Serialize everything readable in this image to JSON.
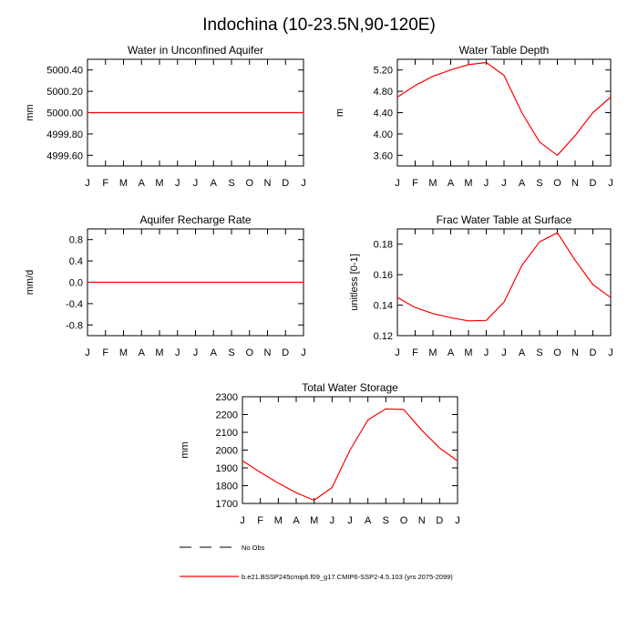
{
  "title": "Indochina (10-23.5N,90-120E)",
  "months": [
    "J",
    "F",
    "M",
    "A",
    "M",
    "J",
    "J",
    "A",
    "S",
    "O",
    "N",
    "D",
    "J"
  ],
  "colors": {
    "series": "#ff0000",
    "axis": "#000000"
  },
  "chart_data": [
    {
      "type": "line",
      "title": "Water in Unconfined Aquifer",
      "ylabel": "mm",
      "ylim": [
        4999.5,
        5000.5
      ],
      "yticks": [
        4999.6,
        4999.8,
        5000.0,
        5000.2,
        5000.4
      ],
      "ytick_labels": [
        "4999.60",
        "4999.80",
        "5000.00",
        "5000.20",
        "5000.40"
      ],
      "values": [
        5000,
        5000,
        5000,
        5000,
        5000,
        5000,
        5000,
        5000,
        5000,
        5000,
        5000,
        5000,
        5000
      ]
    },
    {
      "type": "line",
      "title": "Water Table Depth",
      "ylabel": "m",
      "ylim": [
        3.4,
        5.4
      ],
      "yticks": [
        3.6,
        4.0,
        4.4,
        4.8,
        5.2
      ],
      "ytick_labels": [
        "3.60",
        "4.00",
        "4.40",
        "4.80",
        "5.20"
      ],
      "values": [
        4.69,
        4.91,
        5.08,
        5.2,
        5.3,
        5.34,
        5.1,
        4.4,
        3.85,
        3.6,
        3.97,
        4.4,
        4.69
      ]
    },
    {
      "type": "line",
      "title": "Aquifer Recharge Rate",
      "ylabel": "mm/d",
      "ylim": [
        -1.0,
        1.0
      ],
      "yticks": [
        -0.8,
        -0.4,
        0.0,
        0.4,
        0.8
      ],
      "ytick_labels": [
        "-0.8",
        "-0.4",
        "0.0",
        "0.4",
        "0.8"
      ],
      "values": [
        0,
        0,
        0,
        0,
        0,
        0,
        0,
        0,
        0,
        0,
        0,
        0,
        0
      ]
    },
    {
      "type": "line",
      "title": "Frac Water Table at Surface",
      "ylabel": "unitless [0-1]",
      "ylim": [
        0.12,
        0.19
      ],
      "yticks": [
        0.12,
        0.14,
        0.16,
        0.18
      ],
      "ytick_labels": [
        "0.12",
        "0.14",
        "0.16",
        "0.18"
      ],
      "values": [
        0.145,
        0.1385,
        0.1345,
        0.1318,
        0.1297,
        0.13,
        0.142,
        0.166,
        0.1815,
        0.1875,
        0.1695,
        0.1535,
        0.145
      ]
    },
    {
      "type": "line",
      "title": "Total Water Storage",
      "ylabel": "mm",
      "ylim": [
        1700,
        2300
      ],
      "yticks": [
        1700,
        1800,
        1900,
        2000,
        2100,
        2200,
        2300
      ],
      "ytick_labels": [
        "1700",
        "1800",
        "1900",
        "2000",
        "2100",
        "2200",
        "2300"
      ],
      "values": [
        1940,
        1875,
        1815,
        1760,
        1718,
        1790,
        2000,
        2170,
        2232,
        2228,
        2112,
        2012,
        1940
      ]
    }
  ],
  "legend": {
    "no_obs": "No Obs",
    "model": "b.e21.BSSP245cmip6.f09_g17.CMIP6-SSP2-4.5.103 (yrs 2075-2099)"
  }
}
